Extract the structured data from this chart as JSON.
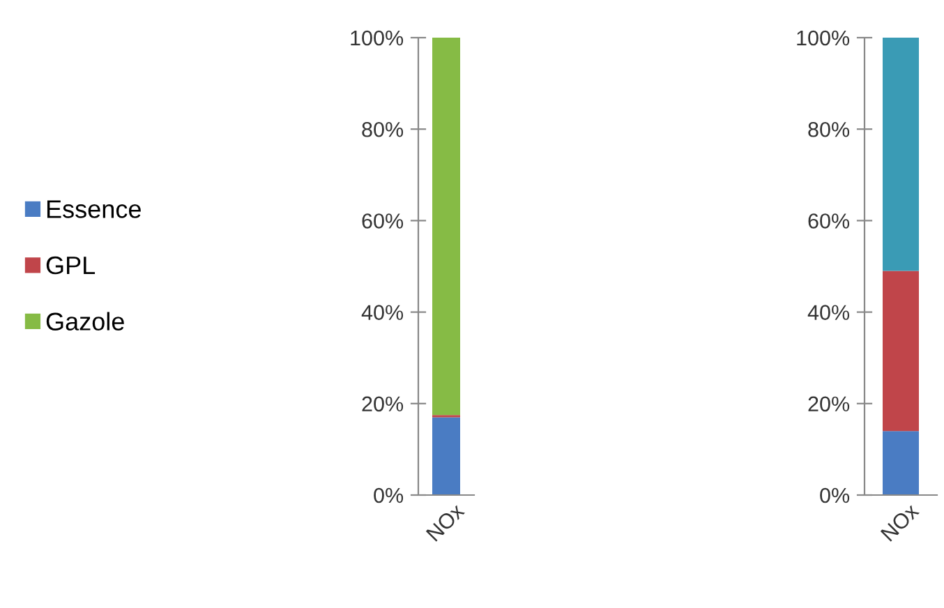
{
  "chart_data": [
    {
      "type": "bar",
      "stacked": true,
      "categories": [
        "NOx"
      ],
      "ylim": [
        0,
        100
      ],
      "yticks": [
        {
          "value": 0,
          "label": "0%"
        },
        {
          "value": 20,
          "label": "20%"
        },
        {
          "value": 40,
          "label": "40%"
        },
        {
          "value": 60,
          "label": "60%"
        },
        {
          "value": 80,
          "label": "80%"
        },
        {
          "value": 100,
          "label": "100%"
        }
      ],
      "grid": false,
      "legend": "left",
      "series": [
        {
          "name": "Essence",
          "color": "#4a7cc3",
          "values": [
            17
          ]
        },
        {
          "name": "GPL",
          "color": "#c0454a",
          "values": [
            0.5
          ]
        },
        {
          "name": "Gazole",
          "color": "#86bb45",
          "values": [
            82.5
          ]
        }
      ]
    },
    {
      "type": "bar",
      "stacked": true,
      "categories": [
        "NOx"
      ],
      "ylim": [
        0,
        100
      ],
      "yticks": [
        {
          "value": 0,
          "label": "0%"
        },
        {
          "value": 20,
          "label": "20%"
        },
        {
          "value": 40,
          "label": "40%"
        },
        {
          "value": 60,
          "label": "60%"
        },
        {
          "value": 80,
          "label": "80%"
        },
        {
          "value": 100,
          "label": "100%"
        }
      ],
      "grid": false,
      "series": [
        {
          "color": "#4a7cc3",
          "values": [
            14
          ]
        },
        {
          "color": "#c0454a",
          "values": [
            35
          ]
        },
        {
          "color": "#3a9bb5",
          "values": [
            51
          ]
        }
      ]
    }
  ]
}
